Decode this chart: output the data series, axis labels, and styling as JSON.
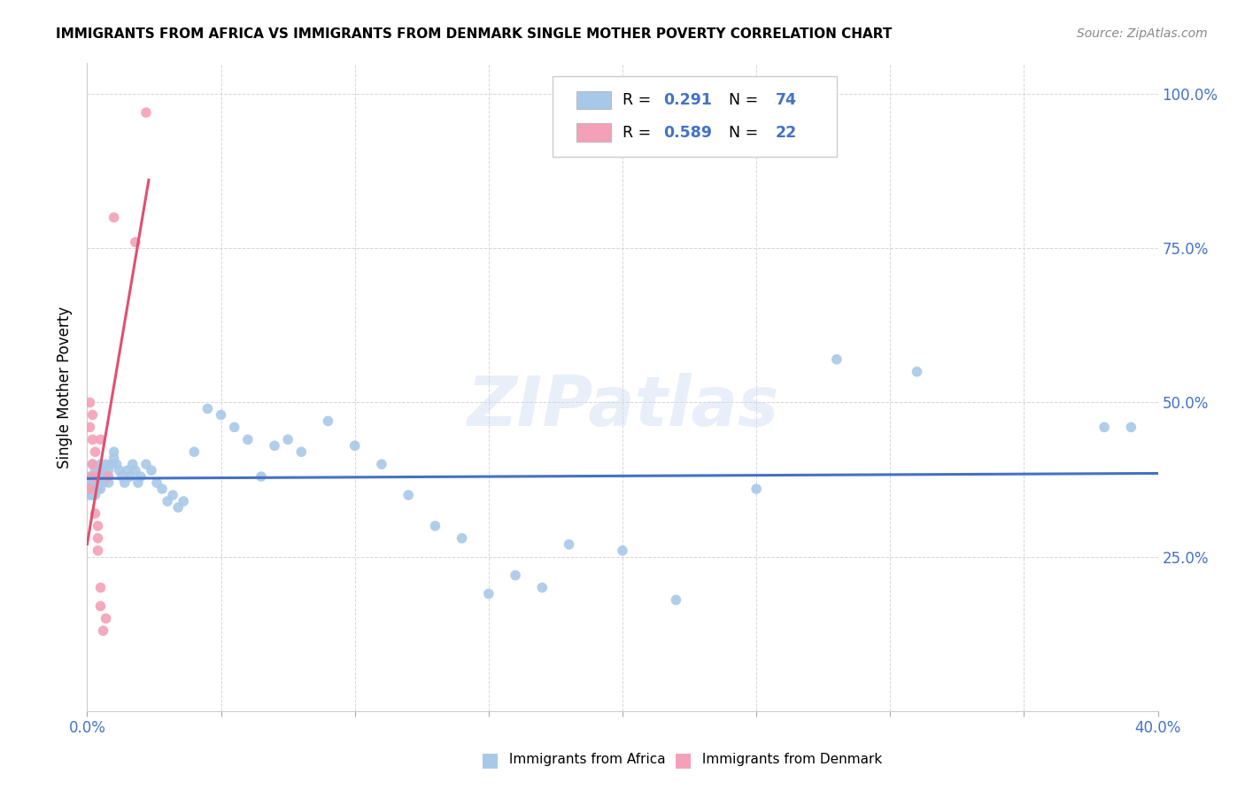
{
  "title": "IMMIGRANTS FROM AFRICA VS IMMIGRANTS FROM DENMARK SINGLE MOTHER POVERTY CORRELATION CHART",
  "source": "Source: ZipAtlas.com",
  "ylabel": "Single Mother Poverty",
  "legend1_R": "0.291",
  "legend1_N": "74",
  "legend2_R": "0.589",
  "legend2_N": "22",
  "color_blue": "#a8c8e8",
  "color_pink": "#f4a0b8",
  "trendline_blue": "#4472c4",
  "trendline_pink": "#e05070",
  "xlim": [
    0.0,
    0.4
  ],
  "ylim": [
    0.0,
    1.05
  ],
  "africa_x": [
    0.001,
    0.001,
    0.001,
    0.001,
    0.002,
    0.002,
    0.002,
    0.002,
    0.002,
    0.003,
    0.003,
    0.003,
    0.003,
    0.003,
    0.004,
    0.004,
    0.004,
    0.004,
    0.005,
    0.005,
    0.005,
    0.006,
    0.006,
    0.007,
    0.007,
    0.008,
    0.008,
    0.009,
    0.01,
    0.01,
    0.011,
    0.012,
    0.013,
    0.014,
    0.015,
    0.016,
    0.017,
    0.018,
    0.019,
    0.02,
    0.022,
    0.024,
    0.026,
    0.028,
    0.03,
    0.032,
    0.034,
    0.036,
    0.04,
    0.045,
    0.05,
    0.055,
    0.06,
    0.065,
    0.07,
    0.075,
    0.08,
    0.09,
    0.1,
    0.11,
    0.12,
    0.13,
    0.14,
    0.15,
    0.16,
    0.17,
    0.18,
    0.2,
    0.22,
    0.25,
    0.28,
    0.31,
    0.38,
    0.39
  ],
  "africa_y": [
    0.38,
    0.37,
    0.36,
    0.35,
    0.4,
    0.38,
    0.37,
    0.36,
    0.35,
    0.39,
    0.38,
    0.37,
    0.36,
    0.35,
    0.39,
    0.38,
    0.37,
    0.36,
    0.4,
    0.38,
    0.36,
    0.39,
    0.37,
    0.4,
    0.38,
    0.39,
    0.37,
    0.4,
    0.42,
    0.41,
    0.4,
    0.39,
    0.38,
    0.37,
    0.39,
    0.38,
    0.4,
    0.39,
    0.37,
    0.38,
    0.4,
    0.39,
    0.37,
    0.36,
    0.34,
    0.35,
    0.33,
    0.34,
    0.42,
    0.49,
    0.48,
    0.46,
    0.44,
    0.38,
    0.43,
    0.44,
    0.42,
    0.47,
    0.43,
    0.4,
    0.35,
    0.3,
    0.28,
    0.19,
    0.22,
    0.2,
    0.27,
    0.26,
    0.18,
    0.36,
    0.57,
    0.55,
    0.46,
    0.46
  ],
  "denmark_x": [
    0.001,
    0.001,
    0.001,
    0.002,
    0.002,
    0.002,
    0.002,
    0.003,
    0.003,
    0.003,
    0.004,
    0.004,
    0.004,
    0.005,
    0.005,
    0.005,
    0.006,
    0.007,
    0.008,
    0.01,
    0.018,
    0.022
  ],
  "denmark_y": [
    0.36,
    0.46,
    0.5,
    0.4,
    0.38,
    0.48,
    0.44,
    0.42,
    0.38,
    0.32,
    0.3,
    0.28,
    0.26,
    0.44,
    0.2,
    0.17,
    0.13,
    0.15,
    0.38,
    0.8,
    0.76,
    0.97
  ]
}
